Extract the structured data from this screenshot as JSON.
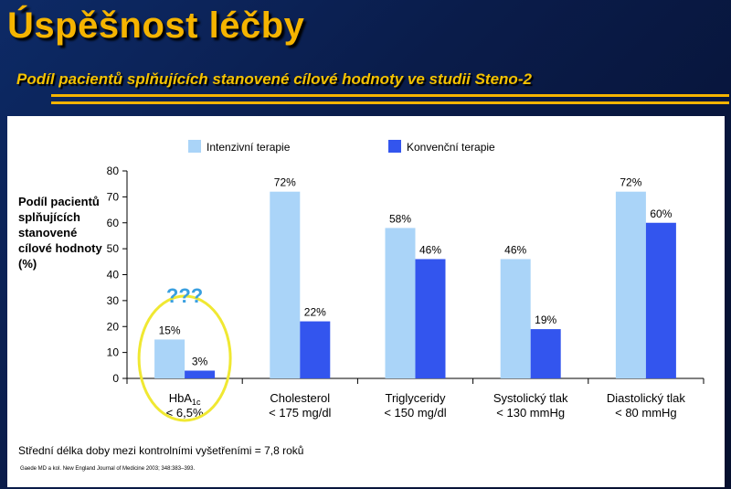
{
  "slide": {
    "title": "Úspěšnost léčby",
    "subtitle": "Podíl pacientů splňujících stanovené cílové hodnoty ve studii Steno-2",
    "annotation": "???",
    "footnote": "Střední délka doby mezi kontrolními vyšetřeními = 7,8 roků",
    "citation": "Gaede MD a kol. New England Journal of Medicine 2003; 348:383–393."
  },
  "colors": {
    "title": "#f5b400",
    "series_intensive": "#aad4f8",
    "series_conventional": "#3355ee",
    "highlight_ellipse": "#f0e832",
    "annotation": "#3aa0e0"
  },
  "chart_data": {
    "type": "bar",
    "ylabel": "Podíl pacientů splňujících stanovené cílové hodnoty (%)",
    "ylim": [
      0,
      80
    ],
    "yticks": [
      0,
      10,
      20,
      30,
      40,
      50,
      60,
      70,
      80
    ],
    "categories": [
      [
        "HbA1c",
        "< 6,5%"
      ],
      [
        "Cholesterol",
        "< 175 mg/dl"
      ],
      [
        "Triglyceridy",
        "< 150 mg/dl"
      ],
      [
        "Systolický tlak",
        "< 130 mmHg"
      ],
      [
        "Diastolický tlak",
        "< 80 mmHg"
      ]
    ],
    "series": [
      {
        "name": "Intenzivní terapie",
        "values": [
          15,
          72,
          58,
          46,
          72
        ],
        "labels": [
          "15%",
          "72%",
          "58%",
          "46%",
          "72%"
        ]
      },
      {
        "name": "Konvenční terapie",
        "values": [
          3,
          22,
          46,
          19,
          60
        ],
        "labels": [
          "3%",
          "22%",
          "46%",
          "19%",
          "60%"
        ]
      }
    ],
    "legend": "top",
    "grid": false
  }
}
